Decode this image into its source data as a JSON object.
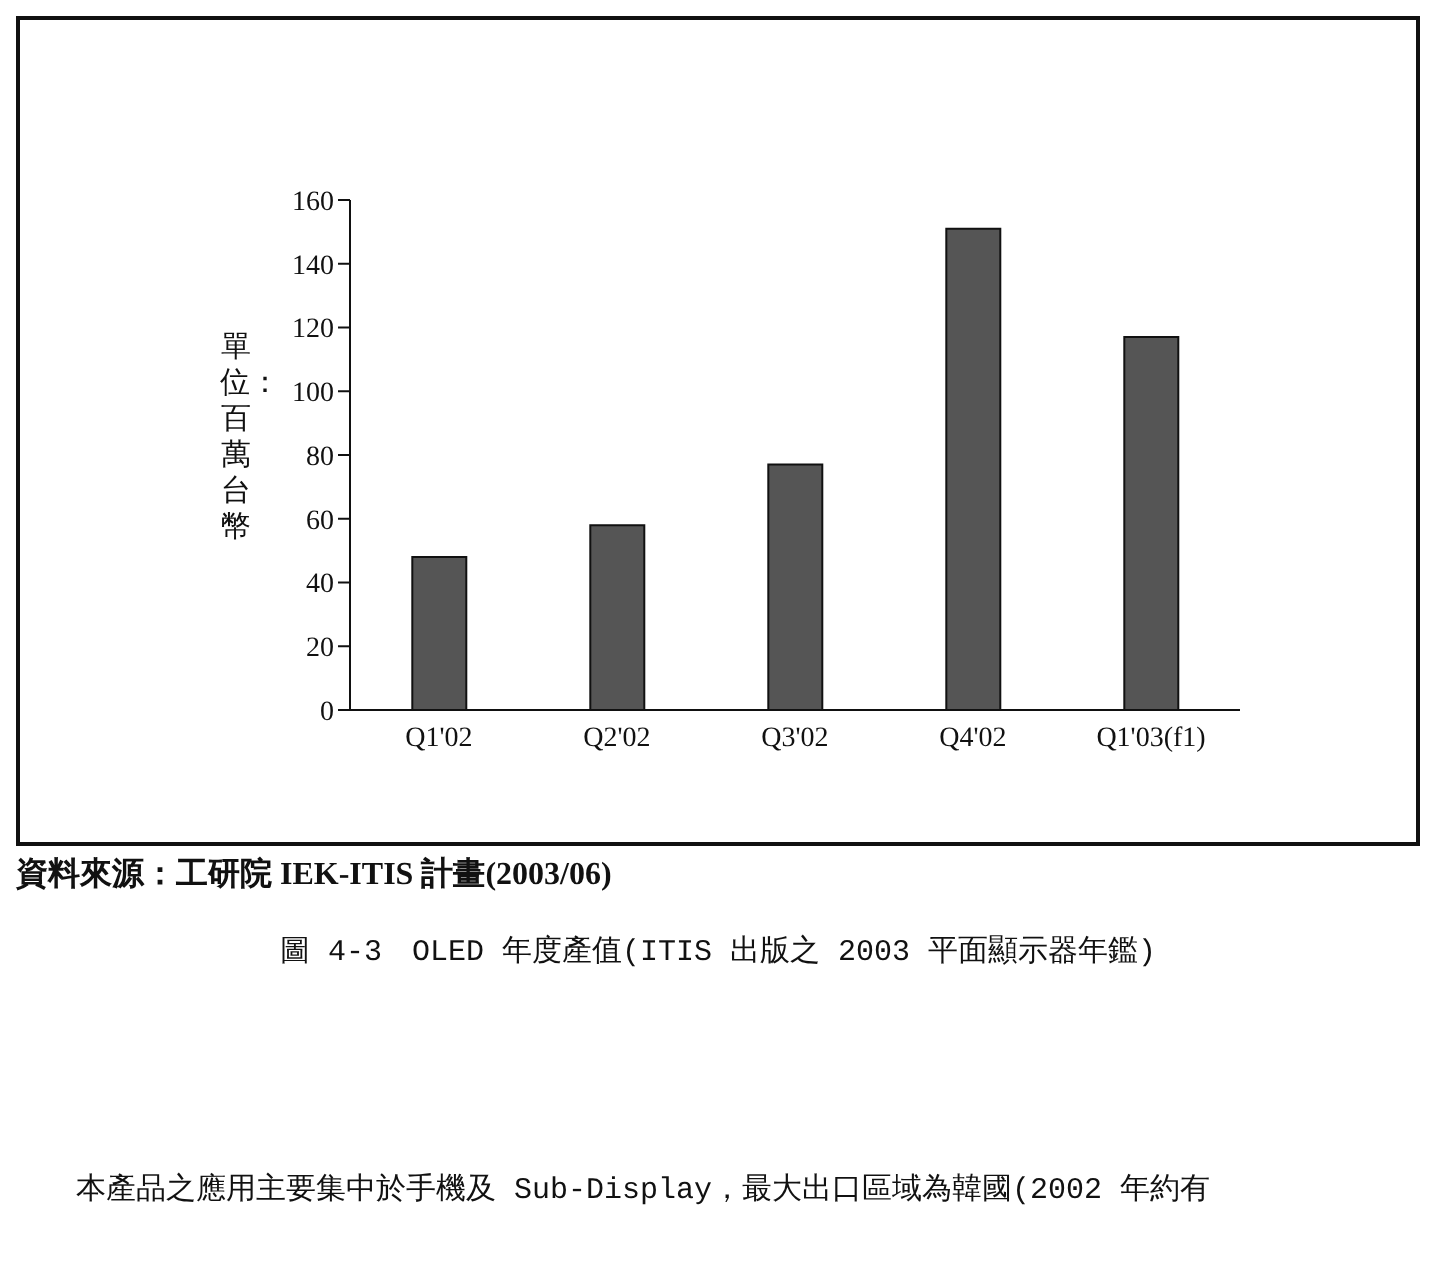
{
  "chart_data": {
    "type": "bar",
    "title": "圖 4-3　OLED 年度產值(ITIS 出版之 2003 平面顯示器年鑑)",
    "ylabel": "單位：百萬台幣",
    "categories": [
      "Q1'02",
      "Q2'02",
      "Q3'02",
      "Q4'02",
      "Q1'03(f1)"
    ],
    "values": [
      48,
      58,
      77,
      151,
      117
    ],
    "color": "#555555",
    "ylim": [
      0,
      160
    ],
    "yticks": [
      0,
      20,
      40,
      60,
      80,
      100,
      120,
      140,
      160
    ],
    "grid": false,
    "legend": false,
    "annotations": [
      "資料來源：工研院 IEK-ITIS 計畫(2003/06)",
      "本產品之應用主要集中於手機及 Sub-Display，最大出口區域為韓國(2002 年約有"
    ]
  }
}
